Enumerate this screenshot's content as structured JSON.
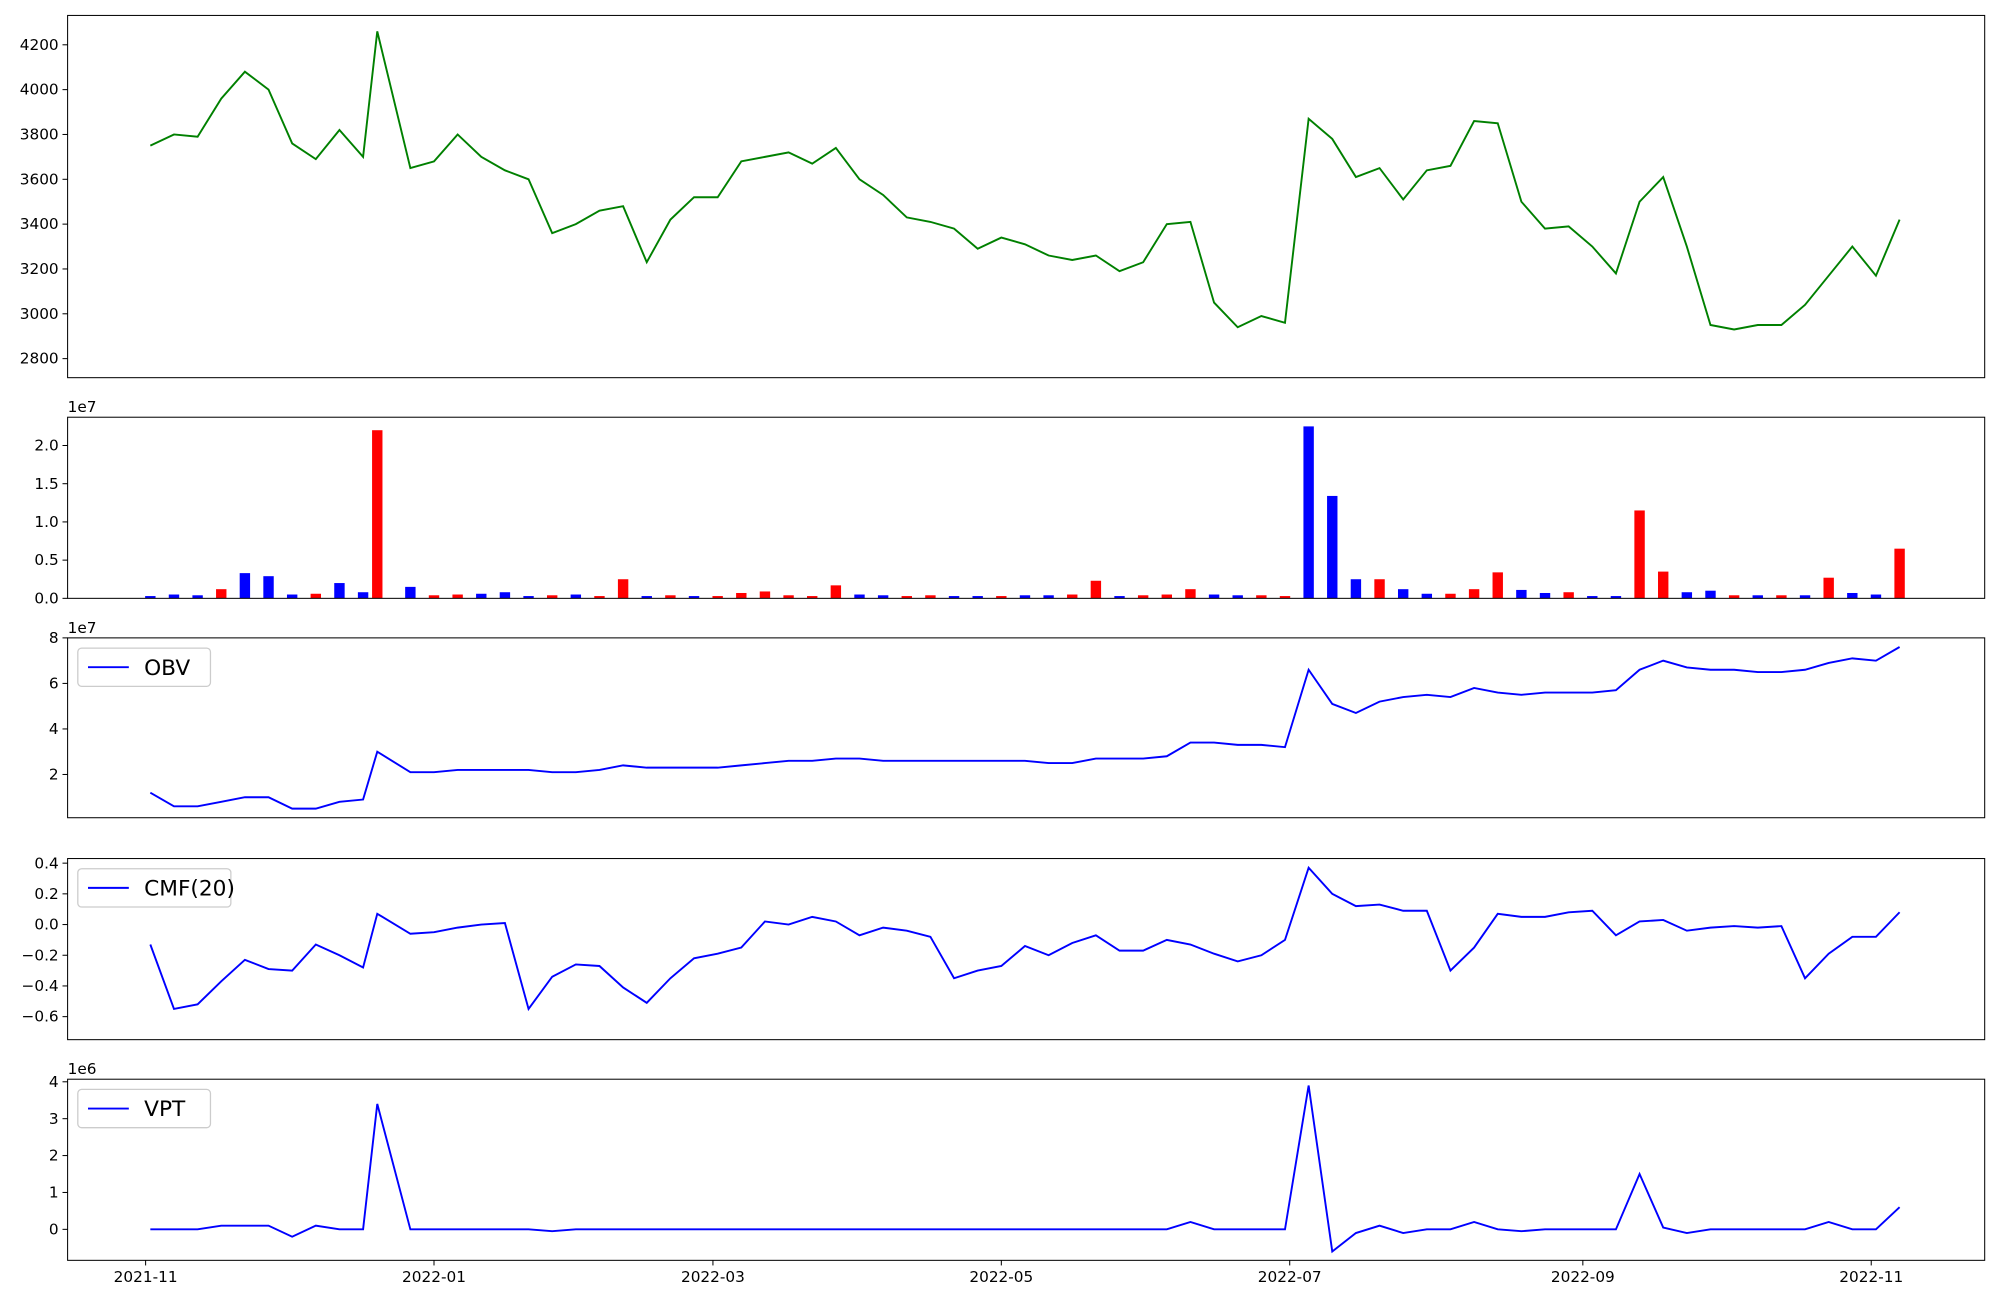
{
  "chart_data": {
    "type": "panels",
    "x": [
      1,
      6,
      11,
      16,
      21,
      26,
      31,
      36,
      41,
      46,
      49,
      56,
      61,
      66,
      71,
      76,
      81,
      86,
      91,
      96,
      101,
      106,
      111,
      116,
      121,
      126,
      131,
      136,
      141,
      146,
      151,
      156,
      161,
      166,
      171,
      176,
      181,
      186,
      191,
      196,
      201,
      206,
      211,
      216,
      221,
      226,
      231,
      236,
      241,
      246,
      251,
      256,
      261,
      266,
      271,
      276,
      281,
      286,
      291,
      296,
      301,
      306,
      311,
      316,
      321,
      326,
      331,
      336,
      341,
      346,
      351,
      356,
      361,
      366,
      371
    ],
    "xlim": [
      -16.5,
      389
    ],
    "xticks": [
      {
        "value": 0,
        "label": "2021-11"
      },
      {
        "value": 61,
        "label": "2022-01"
      },
      {
        "value": 120,
        "label": "2022-03"
      },
      {
        "value": 181,
        "label": "2022-05"
      },
      {
        "value": 242,
        "label": "2022-07"
      },
      {
        "value": 304,
        "label": "2022-09"
      },
      {
        "value": 365,
        "label": "2022-11"
      }
    ],
    "panels": [
      {
        "type": "line",
        "ylim": [
          2715,
          4331
        ],
        "yticks": [
          2800,
          3000,
          3200,
          3400,
          3600,
          3800,
          4000,
          4200
        ],
        "series": [
          {
            "color": "#008000",
            "values": [
              3750,
              3800,
              3790,
              3960,
              4080,
              4000,
              3760,
              3690,
              3820,
              3700,
              4260,
              3650,
              3680,
              3800,
              3700,
              3640,
              3600,
              3360,
              3400,
              3460,
              3480,
              3230,
              3420,
              3520,
              3520,
              3680,
              3700,
              3720,
              3670,
              3740,
              3600,
              3530,
              3430,
              3410,
              3380,
              3290,
              3340,
              3310,
              3260,
              3240,
              3260,
              3190,
              3230,
              3400,
              3410,
              3050,
              2940,
              2990,
              2960,
              3870,
              3780,
              3610,
              3650,
              3510,
              3640,
              3660,
              3860,
              3850,
              3500,
              3380,
              3390,
              3300,
              3180,
              3500,
              3610,
              3300,
              2950,
              2930,
              2950,
              2950,
              3040,
              3170,
              3300,
              3170,
              3420
            ]
          }
        ]
      },
      {
        "type": "bar",
        "offset_label": "1e7",
        "ylim": [
          0,
          23700000
        ],
        "yticks": [
          {
            "value": 0,
            "label": "0.0"
          },
          {
            "value": 5000000,
            "label": "0.5"
          },
          {
            "value": 10000000,
            "label": "1.0"
          },
          {
            "value": 15000000,
            "label": "1.5"
          },
          {
            "value": 20000000,
            "label": "2.0"
          }
        ],
        "values": [
          300000,
          500000,
          400000,
          1200000,
          3300000,
          2900000,
          500000,
          600000,
          2000000,
          800000,
          22000000,
          1500000,
          400000,
          500000,
          600000,
          800000,
          300000,
          400000,
          500000,
          300000,
          2500000,
          300000,
          400000,
          300000,
          300000,
          700000,
          900000,
          400000,
          300000,
          1700000,
          500000,
          400000,
          300000,
          400000,
          300000,
          300000,
          300000,
          400000,
          400000,
          500000,
          2300000,
          300000,
          400000,
          500000,
          1200000,
          500000,
          400000,
          400000,
          300000,
          22500000,
          13400000,
          2500000,
          2500000,
          1200000,
          600000,
          600000,
          1200000,
          3400000,
          1100000,
          700000,
          800000,
          300000,
          300000,
          11500000,
          3500000,
          800000,
          1000000,
          400000,
          400000,
          400000,
          400000,
          2700000,
          700000,
          500000,
          6500000
        ],
        "colors": [
          "#0000ff",
          "#0000ff",
          "#0000ff",
          "#ff0000",
          "#0000ff",
          "#0000ff",
          "#0000ff",
          "#ff0000",
          "#0000ff",
          "#0000ff",
          "#ff0000",
          "#0000ff",
          "#ff0000",
          "#ff0000",
          "#0000ff",
          "#0000ff",
          "#0000ff",
          "#ff0000",
          "#0000ff",
          "#ff0000",
          "#ff0000",
          "#0000ff",
          "#ff0000",
          "#0000ff",
          "#ff0000",
          "#ff0000",
          "#ff0000",
          "#ff0000",
          "#ff0000",
          "#ff0000",
          "#0000ff",
          "#0000ff",
          "#ff0000",
          "#ff0000",
          "#0000ff",
          "#0000ff",
          "#ff0000",
          "#0000ff",
          "#0000ff",
          "#ff0000",
          "#ff0000",
          "#0000ff",
          "#ff0000",
          "#ff0000",
          "#ff0000",
          "#0000ff",
          "#0000ff",
          "#ff0000",
          "#ff0000",
          "#0000ff",
          "#0000ff",
          "#0000ff",
          "#ff0000",
          "#0000ff",
          "#0000ff",
          "#ff0000",
          "#ff0000",
          "#ff0000",
          "#0000ff",
          "#0000ff",
          "#ff0000",
          "#0000ff",
          "#0000ff",
          "#ff0000",
          "#ff0000",
          "#0000ff",
          "#0000ff",
          "#ff0000",
          "#0000ff",
          "#ff0000",
          "#0000ff",
          "#ff0000",
          "#0000ff",
          "#0000ff",
          "#ff0000"
        ]
      },
      {
        "type": "line",
        "offset_label": "1e7",
        "ylim": [
          1000000,
          80000000
        ],
        "yticks": [
          {
            "value": 20000000,
            "label": "2"
          },
          {
            "value": 40000000,
            "label": "4"
          },
          {
            "value": 60000000,
            "label": "6"
          },
          {
            "value": 80000000,
            "label": "8"
          }
        ],
        "series": [
          {
            "name": "OBV",
            "color": "#0000ff",
            "values": [
              12000000,
              6000000,
              6000000,
              8000000,
              10000000,
              10000000,
              5000000,
              5000000,
              8000000,
              9000000,
              30000000,
              21000000,
              21000000,
              22000000,
              22000000,
              22000000,
              22000000,
              21000000,
              21000000,
              22000000,
              24000000,
              23000000,
              23000000,
              23000000,
              23000000,
              24000000,
              25000000,
              26000000,
              26000000,
              27000000,
              27000000,
              26000000,
              26000000,
              26000000,
              26000000,
              26000000,
              26000000,
              26000000,
              25000000,
              25000000,
              27000000,
              27000000,
              27000000,
              28000000,
              34000000,
              34000000,
              33000000,
              33000000,
              32000000,
              66000000,
              51000000,
              47000000,
              52000000,
              54000000,
              55000000,
              54000000,
              58000000,
              56000000,
              55000000,
              56000000,
              56000000,
              56000000,
              57000000,
              66000000,
              70000000,
              67000000,
              66000000,
              66000000,
              65000000,
              65000000,
              66000000,
              69000000,
              71000000,
              70000000,
              76000000
            ]
          }
        ]
      },
      {
        "type": "line",
        "ylim": [
          -0.75,
          0.43
        ],
        "yticks": [
          {
            "value": -0.6,
            "label": "−0.6"
          },
          {
            "value": -0.4,
            "label": "−0.4"
          },
          {
            "value": -0.2,
            "label": "−0.2"
          },
          {
            "value": 0,
            "label": "0.0"
          },
          {
            "value": 0.2,
            "label": "0.2"
          },
          {
            "value": 0.4,
            "label": "0.4"
          }
        ],
        "series": [
          {
            "name": "CMF(20)",
            "color": "#0000ff",
            "values": [
              -0.13,
              -0.55,
              -0.52,
              -0.37,
              -0.23,
              -0.29,
              -0.3,
              -0.13,
              -0.2,
              -0.28,
              0.07,
              -0.06,
              -0.05,
              -0.02,
              0.0,
              0.01,
              -0.55,
              -0.34,
              -0.26,
              -0.27,
              -0.41,
              -0.51,
              -0.35,
              -0.22,
              -0.19,
              -0.15,
              0.02,
              0.0,
              0.05,
              0.02,
              -0.07,
              -0.02,
              -0.04,
              -0.08,
              -0.35,
              -0.3,
              -0.27,
              -0.14,
              -0.2,
              -0.12,
              -0.07,
              -0.17,
              -0.17,
              -0.1,
              -0.13,
              -0.19,
              -0.24,
              -0.2,
              -0.1,
              0.37,
              0.2,
              0.12,
              0.13,
              0.09,
              0.09,
              -0.3,
              -0.15,
              0.07,
              0.05,
              0.05,
              0.08,
              0.09,
              -0.07,
              0.02,
              0.03,
              -0.04,
              -0.02,
              -0.01,
              -0.02,
              -0.01,
              -0.35,
              -0.19,
              -0.08,
              -0.08,
              0.08
            ]
          }
        ]
      },
      {
        "type": "line",
        "offset_label": "1e6",
        "ylim": [
          -840000,
          4070000
        ],
        "yticks": [
          {
            "value": 0,
            "label": "0"
          },
          {
            "value": 1000000,
            "label": "1"
          },
          {
            "value": 2000000,
            "label": "2"
          },
          {
            "value": 3000000,
            "label": "3"
          },
          {
            "value": 4000000,
            "label": "4"
          }
        ],
        "series": [
          {
            "name": "VPT",
            "color": "#0000ff",
            "values": [
              0,
              0,
              0,
              100000,
              100000,
              100000,
              -200000,
              100000,
              0,
              0,
              3400000,
              0,
              0,
              0,
              0,
              0,
              0,
              -50000,
              0,
              0,
              0,
              0,
              0,
              0,
              0,
              0,
              0,
              0,
              0,
              0,
              0,
              0,
              0,
              0,
              0,
              0,
              0,
              0,
              0,
              0,
              0,
              0,
              0,
              0,
              200000,
              0,
              0,
              0,
              0,
              3900000,
              -600000,
              -100000,
              100000,
              -100000,
              0,
              0,
              200000,
              0,
              -50000,
              0,
              0,
              0,
              0,
              1500000,
              50000,
              -100000,
              0,
              0,
              0,
              0,
              0,
              200000,
              0,
              0,
              600000
            ]
          }
        ]
      }
    ]
  }
}
